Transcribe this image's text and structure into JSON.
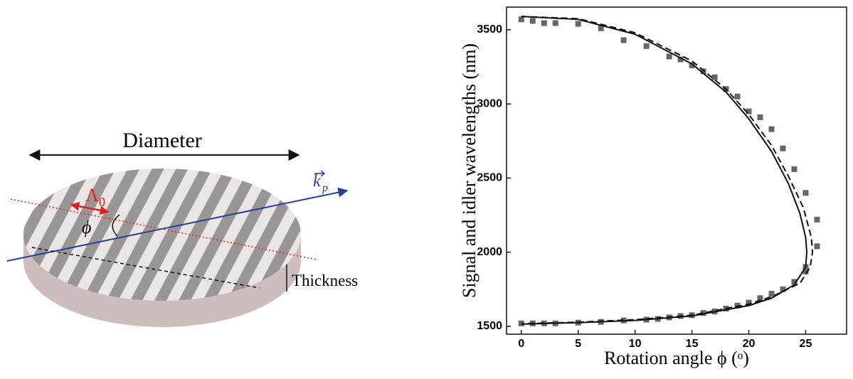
{
  "chart_data": {
    "type": "scatter",
    "xlabel": "Rotation angle ϕ (ᵒ)",
    "ylabel": "Signal and idler wavelengths (nm)",
    "xlim": [
      -1.3,
      28.6
    ],
    "ylim": [
      1447,
      3653
    ],
    "xticks": [
      0,
      5,
      10,
      15,
      20,
      25
    ],
    "yticks": [
      1500,
      2000,
      2500,
      3000,
      3500
    ],
    "series": [
      {
        "kind": "marker",
        "color": "#666666",
        "x": [
          0,
          1,
          2,
          3,
          5,
          7,
          9,
          11,
          13,
          14,
          15,
          16,
          17,
          18,
          19,
          20,
          21,
          22,
          23,
          24,
          25,
          26,
          26,
          25,
          25,
          24,
          23,
          22,
          21,
          20,
          19,
          18,
          17,
          16,
          15,
          14,
          13,
          12,
          11,
          9,
          7,
          5,
          3,
          2,
          1,
          0
        ],
        "values": [
          3570,
          3560,
          3545,
          3545,
          3540,
          3510,
          3430,
          3390,
          3320,
          3300,
          3260,
          3220,
          3180,
          3100,
          3050,
          2950,
          2910,
          2830,
          2700,
          2560,
          2400,
          2220,
          2040,
          1900,
          1870,
          1800,
          1750,
          1720,
          1690,
          1660,
          1640,
          1620,
          1600,
          1590,
          1575,
          1570,
          1560,
          1550,
          1545,
          1540,
          1530,
          1525,
          1520,
          1520,
          1520,
          1520
        ]
      },
      {
        "kind": "line",
        "dash": false,
        "color": "#111111",
        "x": [
          0,
          5,
          10,
          15,
          18,
          20,
          22,
          23.5,
          24.5,
          25,
          25.1,
          25,
          24,
          22,
          20,
          15,
          10,
          5,
          0
        ],
        "values": [
          3590,
          3570,
          3470,
          3270,
          3080,
          2900,
          2680,
          2460,
          2260,
          2100,
          2000,
          1900,
          1780,
          1690,
          1640,
          1570,
          1540,
          1525,
          1515
        ]
      },
      {
        "kind": "line",
        "dash": true,
        "color": "#111111",
        "x": [
          0,
          5,
          10,
          15,
          18,
          20,
          22,
          23.5,
          24.8,
          25.5,
          25.6,
          25.4,
          24.5,
          22,
          20,
          15,
          10,
          5,
          0
        ],
        "values": [
          3590,
          3575,
          3480,
          3290,
          3100,
          2930,
          2720,
          2510,
          2300,
          2100,
          2000,
          1900,
          1790,
          1700,
          1650,
          1575,
          1545,
          1528,
          1518
        ]
      }
    ]
  },
  "diagram": {
    "diameter": "Diameter",
    "lambda": "Λ",
    "lambda_sub": "0",
    "phi": "ϕ",
    "k": "k",
    "k_sub": "p",
    "thickness": "Thickness"
  }
}
